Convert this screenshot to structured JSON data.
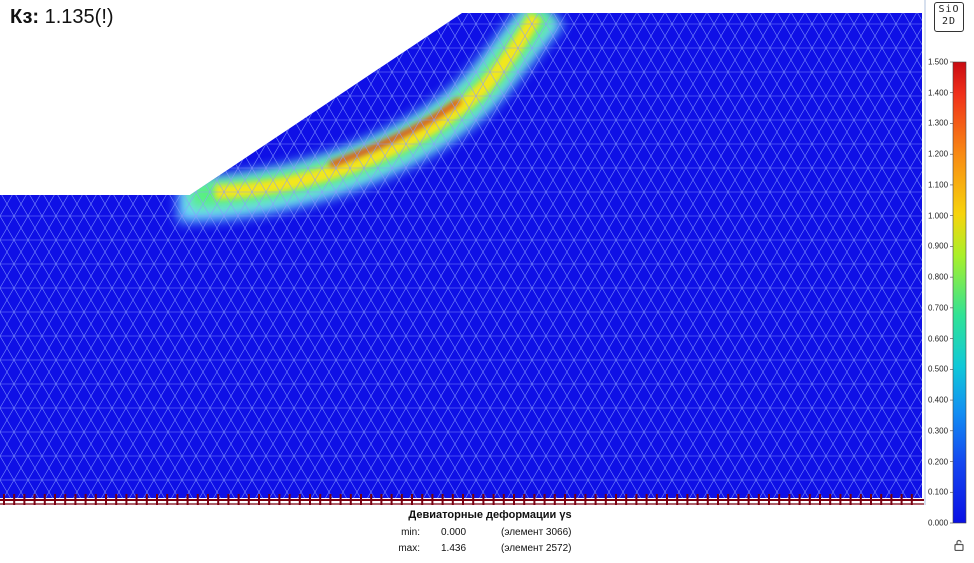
{
  "header": {
    "safety_label": "Кз:",
    "safety_value": "1.135(!)"
  },
  "logo": {
    "line1": "SiO",
    "line2": "2D"
  },
  "legend": {
    "ticks": [
      "1.500",
      "1.400",
      "1.300",
      "1.200",
      "1.100",
      "1.000",
      "0.900",
      "0.800",
      "0.700",
      "0.600",
      "0.500",
      "0.400",
      "0.300",
      "0.200",
      "0.100",
      "0.000"
    ],
    "colors": [
      "#e8101a",
      "#f44718",
      "#f87b14",
      "#f9ac10",
      "#f7d40c",
      "#d8ea14",
      "#a9f02a",
      "#6ef05c",
      "#34e48e",
      "#10d0bc",
      "#10b4e4",
      "#128ef2",
      "#1466f4",
      "#1442f0",
      "#1024ea",
      "#0a10e4"
    ]
  },
  "result": {
    "title": "Девиаторные деформации γs",
    "min_label": "min:",
    "min_value": "0.000",
    "min_ref": "(элемент 3066)",
    "max_label": "max:",
    "max_value": "1.436",
    "max_ref": "(элемент 2572)"
  },
  "colors": {
    "mesh_fill": "#0f10e6",
    "mesh_line": "#8fa0ff",
    "shear_band_core": "#e03a10",
    "support_line": "#7a0010"
  },
  "icons": {
    "lock": "lock-icon"
  }
}
